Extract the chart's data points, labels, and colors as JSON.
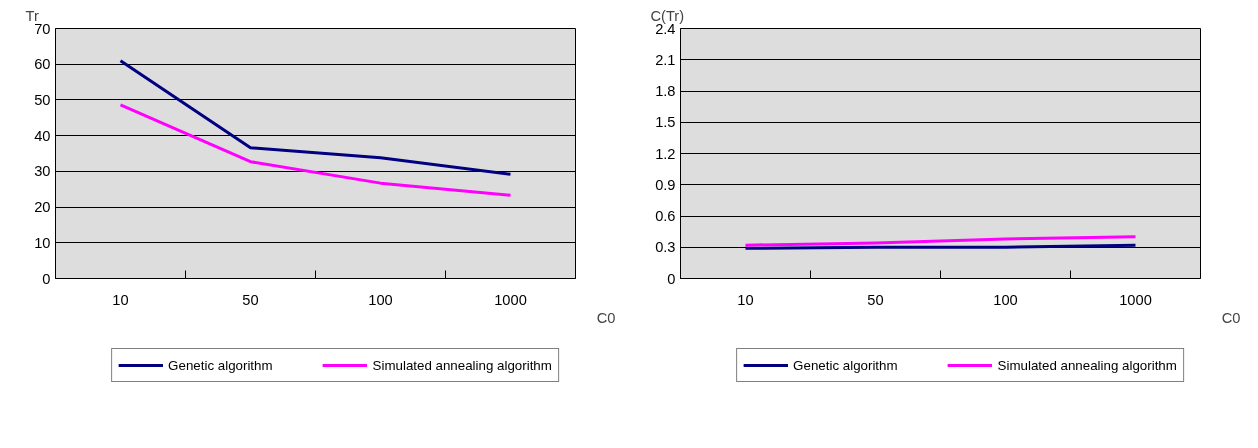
{
  "chart_data": [
    {
      "type": "line",
      "xlabel": "C0",
      "ylabel": "Tr",
      "categories": [
        "10",
        "50",
        "100",
        "1000"
      ],
      "ylim": [
        0,
        70
      ],
      "yticks": [
        0,
        10,
        20,
        30,
        40,
        50,
        60,
        70
      ],
      "grid": "y",
      "legend": "bottom",
      "marker": "none",
      "series": [
        {
          "name": "Genetic algorithm",
          "color": "#000080",
          "values": [
            61,
            36.6,
            33.8,
            29.2
          ]
        },
        {
          "name": "Simulated annealing algorithm",
          "color": "#ff00ff",
          "values": [
            48.6,
            32.7,
            26.7,
            23.3
          ]
        }
      ]
    },
    {
      "type": "line",
      "xlabel": "C0",
      "ylabel": "C(Tr)",
      "categories": [
        "10",
        "50",
        "100",
        "1000"
      ],
      "ylim": [
        0,
        2.4
      ],
      "yticks": [
        0,
        0.3,
        0.6,
        0.9,
        1.2,
        1.5,
        1.8,
        2.1,
        2.4
      ],
      "grid": "y",
      "legend": "bottom",
      "marker": "none",
      "series": [
        {
          "name": "Genetic algorithm",
          "color": "#000080",
          "values": [
            0.29,
            0.3,
            0.3,
            0.32
          ]
        },
        {
          "name": "Simulated annealing algorithm",
          "color": "#ff00ff",
          "values": [
            0.32,
            0.34,
            0.38,
            0.4
          ]
        }
      ]
    }
  ]
}
